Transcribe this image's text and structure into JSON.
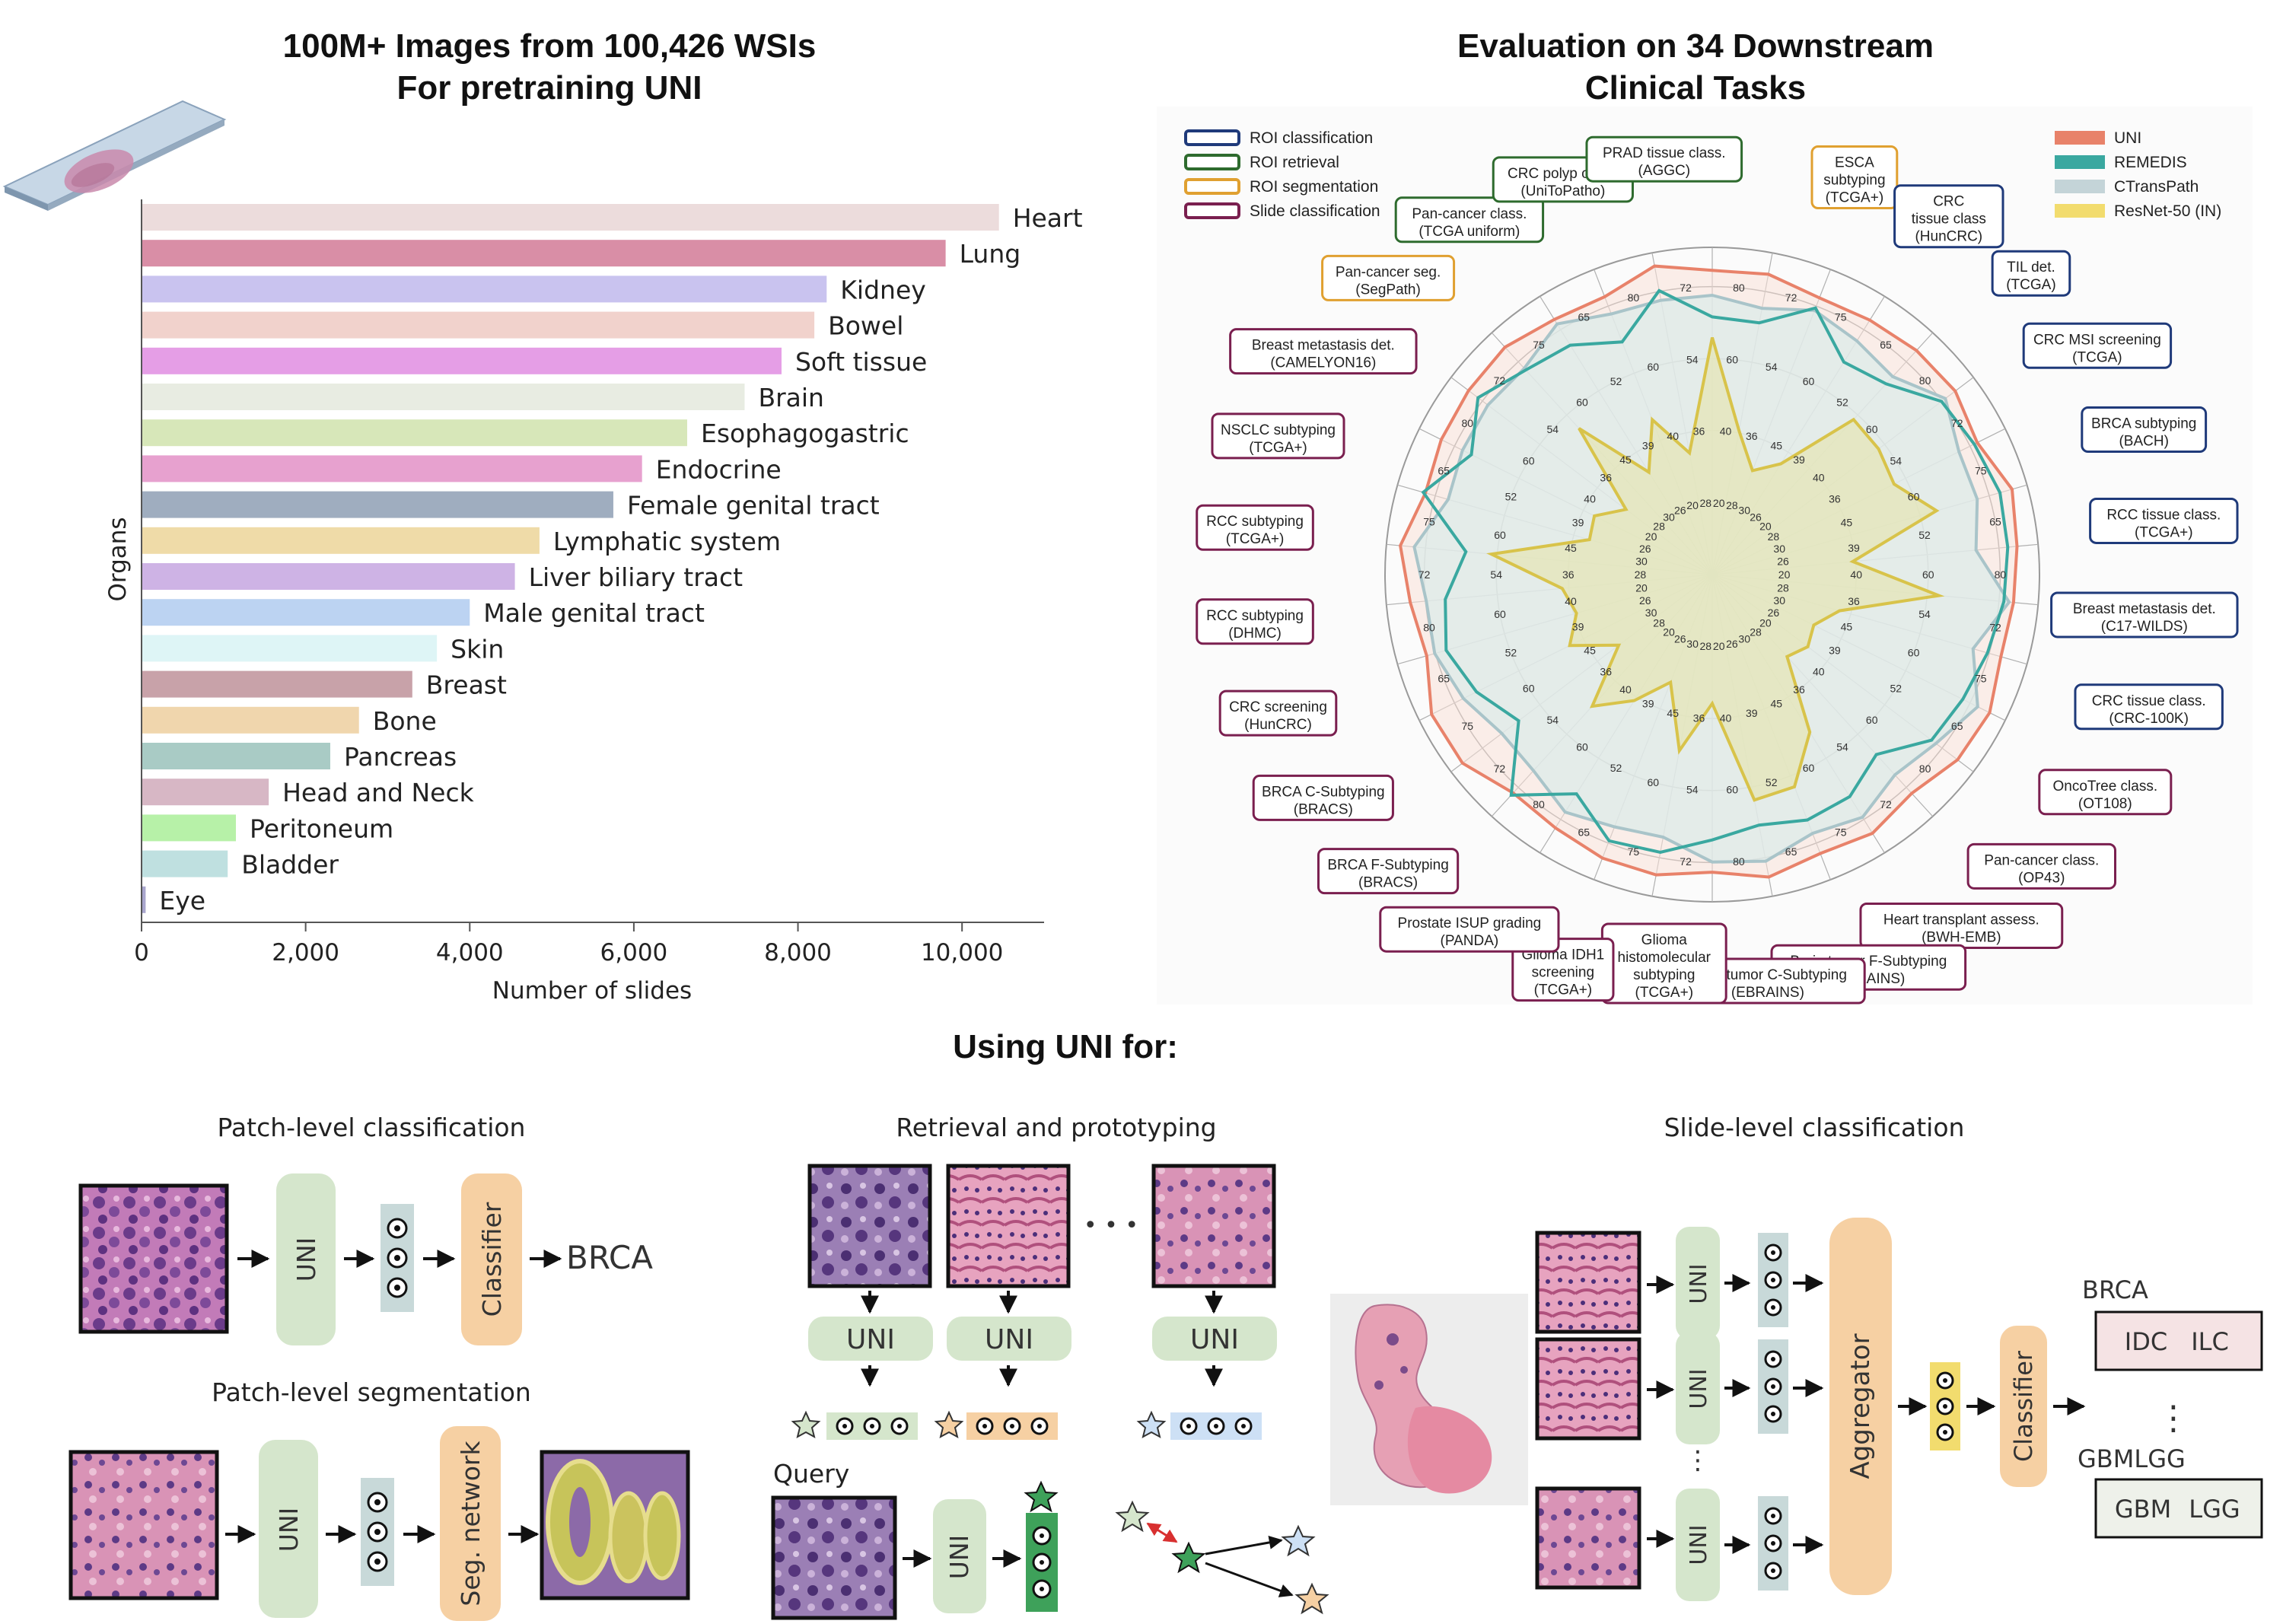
{
  "bar_panel": {
    "title_line1": "100M+ Images from 100,426 WSIs",
    "title_line2": "For pretraining UNI"
  },
  "radar_panel": {
    "title_line1": "Evaluation on 34 Downstream",
    "title_line2": "Clinical Tasks",
    "category_legend": [
      {
        "label": "ROI classification",
        "color": "#1f3a7a"
      },
      {
        "label": "ROI retrieval",
        "color": "#2e6b2e"
      },
      {
        "label": "ROI segmentation",
        "color": "#e0a030"
      },
      {
        "label": "Slide classification",
        "color": "#7a1f4f"
      }
    ],
    "model_legend": [
      {
        "label": "UNI",
        "color": "#e8826a"
      },
      {
        "label": "REMEDIS",
        "color": "#3aa8a0"
      },
      {
        "label": "CTransPath",
        "color": "#c4d4d8"
      },
      {
        "label": "ResNet-50 (IN)",
        "color": "#f2dc6e"
      }
    ],
    "tasks": [
      {
        "line1": "ESCA",
        "line2": "subtyping",
        "line3": "(TCGA+)",
        "cat": 2
      },
      {
        "line1": "CRC",
        "line2": "tissue class",
        "line3": "(HunCRC)",
        "cat": 0
      },
      {
        "line1": "TIL det.",
        "line2": "(TCGA)",
        "line3": "",
        "cat": 0
      },
      {
        "line1": "CRC MSI screening",
        "line2": "(TCGA)",
        "line3": "",
        "cat": 0
      },
      {
        "line1": "BRCA subtyping",
        "line2": "(BACH)",
        "line3": "",
        "cat": 0
      },
      {
        "line1": "RCC tissue class.",
        "line2": "(TCGA+)",
        "line3": "",
        "cat": 0
      },
      {
        "line1": "Breast metastasis det.",
        "line2": "(C17-WILDS)",
        "line3": "",
        "cat": 0
      },
      {
        "line1": "CRC tissue class.",
        "line2": "(CRC-100K)",
        "line3": "",
        "cat": 0
      },
      {
        "line1": "OncoTree class.",
        "line2": "(OT108)",
        "line3": "",
        "cat": 3
      },
      {
        "line1": "Pan-cancer class.",
        "line2": "(OP43)",
        "line3": "",
        "cat": 3
      },
      {
        "line1": "Heart transplant assess.",
        "line2": "(BWH-EMB)",
        "line3": "",
        "cat": 3
      },
      {
        "line1": "Brain tumor F-Subtyping",
        "line2": "(EBRAINS)",
        "line3": "",
        "cat": 3
      },
      {
        "line1": "Brain tumor C-Subtyping",
        "line2": "(EBRAINS)",
        "line3": "",
        "cat": 3
      },
      {
        "line1": "Glioma",
        "line2": "histomolecular",
        "line3": "subtyping",
        "line4": "(TCGA+)",
        "cat": 3
      },
      {
        "line1": "Glioma IDH1",
        "line2": "screening",
        "line3": "(TCGA+)",
        "cat": 3
      },
      {
        "line1": "Prostate ISUP grading",
        "line2": "(PANDA)",
        "line3": "",
        "cat": 3
      },
      {
        "line1": "BRCA F-Subtyping",
        "line2": "(BRACS)",
        "line3": "",
        "cat": 3
      },
      {
        "line1": "BRCA C-Subtyping",
        "line2": "(BRACS)",
        "line3": "",
        "cat": 3
      },
      {
        "line1": "CRC screening",
        "line2": "(HunCRC)",
        "line3": "",
        "cat": 3
      },
      {
        "line1": "RCC subtyping",
        "line2": "(DHMC)",
        "line3": "",
        "cat": 3
      },
      {
        "line1": "RCC subtyping",
        "line2": "(TCGA+)",
        "line3": "",
        "cat": 3
      },
      {
        "line1": "NSCLC subtyping",
        "line2": "(TCGA+)",
        "line3": "",
        "cat": 3
      },
      {
        "line1": "Breast metastasis det.",
        "line2": "(CAMELYON16)",
        "line3": "",
        "cat": 3
      },
      {
        "line1": "Pan-cancer seg.",
        "line2": "(SegPath)",
        "line3": "",
        "cat": 2
      },
      {
        "line1": "Pan-cancer class.",
        "line2": "(TCGA uniform)",
        "line3": "",
        "cat": 1
      },
      {
        "line1": "CRC polyp class.",
        "line2": "(UniToPatho)",
        "line3": "",
        "cat": 1
      },
      {
        "line1": "PRAD tissue class.",
        "line2": "(AGGC)",
        "line3": "",
        "cat": 1
      }
    ]
  },
  "chart_data": {
    "type": "bar",
    "orientation": "horizontal",
    "categories": [
      "Heart",
      "Lung",
      "Kidney",
      "Bowel",
      "Soft tissue",
      "Brain",
      "Esophagogastric",
      "Endocrine",
      "Female genital tract",
      "Lymphatic system",
      "Liver biliary tract",
      "Male genital tract",
      "Skin",
      "Breast",
      "Bone",
      "Pancreas",
      "Head and Neck",
      "Peritoneum",
      "Bladder",
      "Eye"
    ],
    "values": [
      10450,
      9800,
      8350,
      8200,
      7800,
      7350,
      6650,
      6100,
      5750,
      4850,
      4550,
      4000,
      3600,
      3300,
      2650,
      2300,
      1550,
      1150,
      1050,
      50
    ],
    "colors": [
      "#ecdcdc",
      "#d98ea6",
      "#c9c3ef",
      "#f1d2cc",
      "#e59ee6",
      "#e8ece2",
      "#d7e7b9",
      "#e7a1cf",
      "#9fadbf",
      "#efdba8",
      "#ceb3e5",
      "#bcd3f2",
      "#def5f6",
      "#c8a2a9",
      "#f0d6ad",
      "#a9cbc5",
      "#d7b7c5",
      "#b7f1a8",
      "#bfe0e0",
      "#a9a6cd"
    ],
    "xlabel": "Number of slides",
    "ylabel": "Organs",
    "xlim": [
      0,
      11000
    ],
    "xticks": [
      "0",
      "2,000",
      "4,000",
      "6,000",
      "8,000",
      "10,000"
    ]
  },
  "bottom": {
    "title": "Using UNI for:",
    "patch_cls_title": "Patch-level classification",
    "patch_seg_title": "Patch-level segmentation",
    "retrieval_title": "Retrieval and prototyping",
    "slide_title": "Slide-level classification",
    "uni_label": "UNI",
    "classifier_label": "Classifier",
    "brca_label": "BRCA",
    "seg_network_label": "Seg. network",
    "query_label": "Query",
    "ellipsis": "• • •",
    "aggregator_label": "Aggregator",
    "idc_label": "IDC",
    "ilc_label": "ILC",
    "gbmlgg_label": "GBMLGG",
    "gbm_label": "GBM",
    "lgg_label": "LGG",
    "vdots": "⋮"
  }
}
